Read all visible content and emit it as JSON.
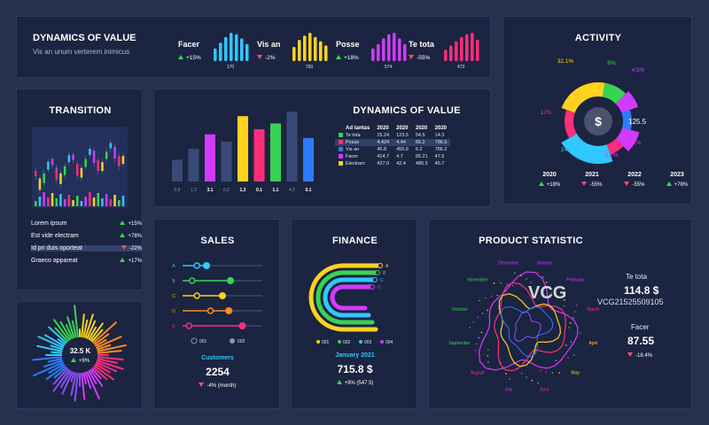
{
  "colors": {
    "cyan": "#2fc8ff",
    "blue": "#2c7bff",
    "yellow": "#ffd21f",
    "green": "#39d353",
    "magenta": "#d23bff",
    "pink": "#ff2d7a",
    "orange": "#ff8a1f",
    "purple": "#8a4dff",
    "slate": "#3a4a78"
  },
  "header": {
    "title": "DYNAMICS OF VALUE",
    "subtitle": "Vis an unum verterem inimicus",
    "kpis": [
      {
        "name": "Facer",
        "change": "+15%",
        "dir": "up",
        "value": "170",
        "color": "#2fc8ff",
        "bars": [
          0.45,
          0.65,
          0.85,
          1.0,
          0.95,
          0.8,
          0.6
        ]
      },
      {
        "name": "Vis an",
        "change": "-2%",
        "dir": "down",
        "value": "750",
        "color": "#ffd21f",
        "bars": [
          0.5,
          0.75,
          0.9,
          1.0,
          0.85,
          0.7,
          0.55
        ]
      },
      {
        "name": "Posse",
        "change": "+18%",
        "dir": "up",
        "value": "574",
        "color": "#d23bff",
        "bars": [
          0.45,
          0.6,
          0.8,
          0.95,
          1.0,
          0.8,
          0.6
        ]
      },
      {
        "name": "Te tota",
        "change": "-55%",
        "dir": "down",
        "value": "473",
        "color": "#ff2d7a",
        "bars": [
          0.4,
          0.55,
          0.7,
          0.85,
          0.95,
          1.0,
          0.75
        ]
      }
    ]
  },
  "activity": {
    "title": "ACTIVITY",
    "center_symbol": "$",
    "center_value": "125.5",
    "slice_labels": [
      {
        "text": "32.1%",
        "color": "#ffd21f"
      },
      {
        "text": "8%",
        "color": "#39d353"
      },
      {
        "text": "4.5%",
        "color": "#d23bff"
      },
      {
        "text": "12%",
        "color": "#ff2d7a"
      },
      {
        "text": "8.1%",
        "color": "#d23bff"
      },
      {
        "text": "24.2%",
        "color": "#2fc8ff"
      },
      {
        "text": "3.2%",
        "color": "#d23bff"
      }
    ],
    "years": [
      {
        "year": "2020",
        "change": "+18%",
        "dir": "up"
      },
      {
        "year": "2021",
        "change": "-55%",
        "dir": "down"
      },
      {
        "year": "2022",
        "change": "-55%",
        "dir": "down"
      },
      {
        "year": "2023",
        "change": "+78%",
        "dir": "up"
      }
    ]
  },
  "transition": {
    "title": "TRANSITION",
    "rows": [
      {
        "label": "Lorem ipsum",
        "change": "+15%",
        "dir": "up"
      },
      {
        "label": "Est vide electram",
        "change": "+78%",
        "dir": "up"
      },
      {
        "label": "Id pri duis oporteat",
        "change": "-22%",
        "dir": "down"
      },
      {
        "label": "Graeco appareat",
        "change": "+17%",
        "dir": "up"
      }
    ]
  },
  "dynamics_table": {
    "title": "DYNAMICS OF VALUE",
    "headers": [
      "Ad tantas",
      "2020",
      "2020",
      "2020",
      "2020"
    ],
    "rows": [
      {
        "name": "Te tota",
        "color": "#39d353",
        "vals": [
          "15.24",
          "123.5",
          "54.5",
          "14.3"
        ]
      },
      {
        "name": "Posse",
        "color": "#ff2d7a",
        "vals": [
          "4.424",
          "4.44",
          "65.2",
          "786.5"
        ]
      },
      {
        "name": "Vis an",
        "color": "#2c7bff",
        "vals": [
          "45.8",
          "455.6",
          "6.2",
          "786.2"
        ]
      },
      {
        "name": "Facer",
        "color": "#d23bff",
        "vals": [
          "414.7",
          "4.7",
          "65.21",
          "47.5"
        ]
      },
      {
        "name": "Electram",
        "color": "#ffd21f",
        "vals": [
          "427.0",
          "42.4",
          "486.5",
          "45.7"
        ]
      }
    ]
  },
  "chart_data": {
    "type": "bar",
    "title": "DYNAMICS OF VALUE",
    "categories": [
      "0.0",
      "1.2",
      "3.1",
      "0.2",
      "1.2",
      "0.1",
      "1.1",
      "4.2",
      "0.1"
    ],
    "values": [
      0.3,
      0.45,
      0.65,
      0.55,
      0.9,
      0.72,
      0.8,
      0.96,
      0.6
    ],
    "colors": [
      "#3a4a78",
      "#3a4a78",
      "#d23bff",
      "#3a4a78",
      "#ffd21f",
      "#ff2d7a",
      "#39d353",
      "#3a4a78",
      "#2c7bff"
    ],
    "highlight_labels": [
      "3.1",
      "1.2",
      "1.1",
      "4.2"
    ]
  },
  "gauge": {
    "value": "32.5 K",
    "change": "+9%",
    "dir": "up"
  },
  "sales": {
    "title": "SALES",
    "rows": [
      {
        "label": "A",
        "color": "#2fc8ff",
        "a": 0.18,
        "b": 0.3
      },
      {
        "label": "B",
        "color": "#39d353",
        "a": 0.12,
        "b": 0.6
      },
      {
        "label": "C",
        "color": "#ffd21f",
        "a": 0.18,
        "b": 0.5
      },
      {
        "label": "D",
        "color": "#ff8a1f",
        "a": 0.35,
        "b": 0.58
      },
      {
        "label": "E",
        "color": "#ff2d7a",
        "a": 0.08,
        "b": 0.75
      }
    ],
    "legend": [
      "001",
      "002"
    ],
    "caption": "Customers",
    "value": "2254",
    "change": "-4% (month)",
    "dir": "down"
  },
  "finance": {
    "title": "FINANCE",
    "track_labels": [
      "A",
      "B",
      "C",
      "D"
    ],
    "track_colors": [
      "#ffd21f",
      "#39d353",
      "#2fc8ff",
      "#d23bff"
    ],
    "legend": [
      {
        "label": "001",
        "color": "#ffd21f"
      },
      {
        "label": "002",
        "color": "#39d353"
      },
      {
        "label": "003",
        "color": "#2fc8ff"
      },
      {
        "label": "004",
        "color": "#d23bff"
      }
    ],
    "caption": "January 2021",
    "value": "715.8 $",
    "change": "+9% (547.5)",
    "dir": "up"
  },
  "product": {
    "title": "PRODUCT STATISTIC",
    "months": [
      {
        "name": "January",
        "color": "#d23bff"
      },
      {
        "name": "February",
        "color": "#d23bff"
      },
      {
        "name": "March",
        "color": "#ff2d7a"
      },
      {
        "name": "April",
        "color": "#ffd21f"
      },
      {
        "name": "May",
        "color": "#ffd21f"
      },
      {
        "name": "June",
        "color": "#ff2d7a"
      },
      {
        "name": "July",
        "color": "#d23bff"
      },
      {
        "name": "August",
        "color": "#ff2d7a"
      },
      {
        "name": "September",
        "color": "#39d353"
      },
      {
        "name": "October",
        "color": "#39d353"
      },
      {
        "name": "November",
        "color": "#39d353"
      },
      {
        "name": "December",
        "color": "#d23bff"
      }
    ],
    "stat1": {
      "name": "Te tota",
      "value": "114.8 $"
    },
    "stat2": {
      "name": "Facer",
      "value": "87.55",
      "change": "-18.4%",
      "dir": "down"
    },
    "watermark": "VCG",
    "watermark_id": "VCG21525509105"
  }
}
